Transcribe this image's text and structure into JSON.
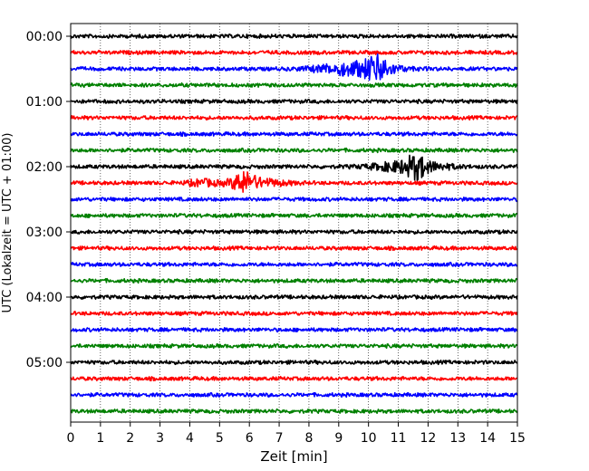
{
  "chart_data": {
    "type": "line",
    "title": "",
    "xlabel": "Zeit  [min]",
    "ylabel": "UTC (Lokalzeit = UTC + 01:00)",
    "xlim": [
      0,
      15
    ],
    "x_ticks": [
      "0",
      "1",
      "2",
      "3",
      "4",
      "5",
      "6",
      "7",
      "8",
      "9",
      "10",
      "11",
      "12",
      "13",
      "14",
      "15"
    ],
    "y_tick_labels": [
      "00:00",
      "01:00",
      "02:00",
      "03:00",
      "04:00",
      "05:00"
    ],
    "grid_x": "dotted",
    "legend": "none",
    "trace_interval_min": 15,
    "trace_colors": [
      "#000000",
      "#ff0000",
      "#0000ff",
      "#008000"
    ],
    "traces": [
      {
        "start": "00:00",
        "color": "#000000",
        "events": []
      },
      {
        "start": "00:15",
        "color": "#ff0000",
        "events": []
      },
      {
        "start": "00:30",
        "color": "#0000ff",
        "events": [
          {
            "t": 9.6,
            "amp": 7,
            "width": 1.3
          },
          {
            "t": 10.3,
            "amp": 9,
            "width": 0.4
          }
        ]
      },
      {
        "start": "00:45",
        "color": "#008000",
        "events": []
      },
      {
        "start": "01:00",
        "color": "#000000",
        "events": []
      },
      {
        "start": "01:15",
        "color": "#ff0000",
        "events": []
      },
      {
        "start": "01:30",
        "color": "#0000ff",
        "events": []
      },
      {
        "start": "01:45",
        "color": "#008000",
        "events": []
      },
      {
        "start": "02:00",
        "color": "#000000",
        "events": [
          {
            "t": 11.4,
            "amp": 6,
            "width": 1.2
          },
          {
            "t": 11.6,
            "amp": 8,
            "width": 0.3
          }
        ]
      },
      {
        "start": "02:15",
        "color": "#ff0000",
        "events": [
          {
            "t": 5.8,
            "amp": 8,
            "width": 0.35
          },
          {
            "t": 6.2,
            "amp": 4,
            "width": 1.0
          },
          {
            "t": 4.4,
            "amp": 3,
            "width": 0.5
          }
        ]
      },
      {
        "start": "02:30",
        "color": "#0000ff",
        "events": []
      },
      {
        "start": "02:45",
        "color": "#008000",
        "events": []
      },
      {
        "start": "03:00",
        "color": "#000000",
        "events": []
      },
      {
        "start": "03:15",
        "color": "#ff0000",
        "events": []
      },
      {
        "start": "03:30",
        "color": "#0000ff",
        "events": []
      },
      {
        "start": "03:45",
        "color": "#008000",
        "events": []
      },
      {
        "start": "04:00",
        "color": "#000000",
        "events": []
      },
      {
        "start": "04:15",
        "color": "#ff0000",
        "events": []
      },
      {
        "start": "04:30",
        "color": "#0000ff",
        "events": []
      },
      {
        "start": "04:45",
        "color": "#008000",
        "events": []
      },
      {
        "start": "05:00",
        "color": "#000000",
        "events": []
      },
      {
        "start": "05:15",
        "color": "#ff0000",
        "events": []
      },
      {
        "start": "05:30",
        "color": "#0000ff",
        "events": []
      },
      {
        "start": "05:45",
        "color": "#008000",
        "events": []
      }
    ]
  }
}
